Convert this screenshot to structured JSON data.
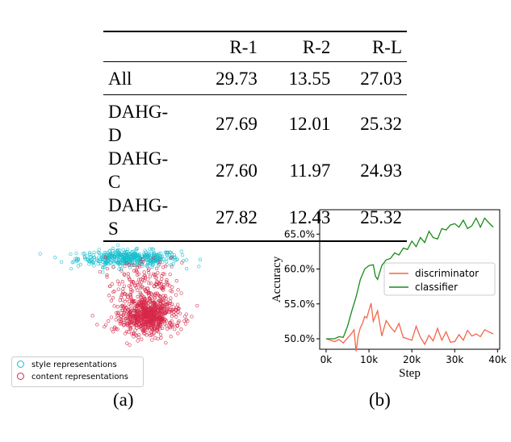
{
  "table": {
    "columns": [
      "R-1",
      "R-2",
      "R-L"
    ],
    "rows": [
      {
        "label": "All",
        "values": [
          "29.73",
          "13.55",
          "27.03"
        ]
      },
      {
        "label": "DAHG-D",
        "values": [
          "27.69",
          "12.01",
          "25.32"
        ]
      },
      {
        "label": "DAHG-C",
        "values": [
          "27.60",
          "11.97",
          "24.93"
        ]
      },
      {
        "label": "DAHG-S",
        "values": [
          "27.82",
          "12.43",
          "25.32"
        ]
      }
    ]
  },
  "panel_a": {
    "caption": "(a)",
    "legend": [
      "style representations",
      "content representations"
    ],
    "colors": {
      "style": "#17becf",
      "content": "#d62748"
    }
  },
  "panel_b": {
    "caption": "(b)",
    "legend": [
      "discriminator",
      "classifier"
    ],
    "colors": {
      "discriminator": "#f4664a",
      "classifier": "#1a8a1a"
    }
  },
  "chart_data": [
    {
      "type": "scatter",
      "title": "",
      "xlabel": "",
      "ylabel": "",
      "series": [
        {
          "name": "style representations",
          "center": [
            0.0,
            1.6
          ],
          "spread": [
            1.6,
            0.35
          ],
          "count": 450
        },
        {
          "name": "content representations",
          "center": [
            0.6,
            -1.2
          ],
          "spread": [
            0.9,
            0.8
          ],
          "count": 900
        }
      ],
      "legend_position": "bottom-left"
    },
    {
      "type": "line",
      "title": "",
      "xlabel": "Step",
      "ylabel": "Accuracy",
      "xlim": [
        -1500,
        40500
      ],
      "ylim": [
        48.5,
        68.5
      ],
      "x_ticks": [
        0,
        10000,
        20000,
        30000,
        40000
      ],
      "x_tick_labels": [
        "0k",
        "10k",
        "20k",
        "30k",
        "40k"
      ],
      "y_ticks": [
        50,
        55,
        60,
        65
      ],
      "y_tick_labels": [
        "50.0%",
        "55.0%",
        "60.0%",
        "65.0%"
      ],
      "legend_position": "center-right",
      "series": [
        {
          "name": "discriminator",
          "x": [
            0,
            2000,
            3000,
            4000,
            5000,
            6000,
            6500,
            7000,
            7500,
            8000,
            8500,
            9000,
            9500,
            10000,
            10500,
            11000,
            12000,
            13000,
            14000,
            15000,
            16000,
            17000,
            18000,
            19000,
            20000,
            21000,
            22000,
            23000,
            24000,
            25000,
            26000,
            27000,
            28000,
            29000,
            30000,
            31000,
            32000,
            33000,
            34000,
            35000,
            36000,
            37000,
            38000,
            39000
          ],
          "values": [
            50.0,
            49.6,
            49.9,
            49.4,
            50.1,
            50.8,
            51.3,
            48.2,
            50.5,
            51.6,
            52.2,
            53.2,
            53.0,
            54.1,
            55.1,
            52.5,
            54.0,
            50.4,
            52.6,
            51.7,
            51.0,
            52.2,
            50.2,
            50.0,
            49.8,
            51.8,
            50.2,
            49.2,
            50.5,
            49.7,
            51.5,
            49.8,
            51.0,
            49.5,
            49.6,
            50.6,
            49.8,
            51.2,
            50.4,
            50.7,
            50.3,
            51.3,
            51.0,
            50.7
          ]
        },
        {
          "name": "classifier",
          "x": [
            0,
            2000,
            3000,
            4000,
            5000,
            6000,
            7000,
            8000,
            9000,
            10000,
            11000,
            11500,
            12000,
            13000,
            14000,
            15000,
            16000,
            17000,
            18000,
            19000,
            20000,
            21000,
            22000,
            23000,
            24000,
            25000,
            26000,
            27000,
            28000,
            29000,
            30000,
            31000,
            32000,
            33000,
            34000,
            35000,
            36000,
            37000,
            38000,
            39000
          ],
          "values": [
            50.0,
            50.0,
            50.3,
            50.2,
            51.8,
            54.0,
            56.0,
            58.5,
            60.0,
            60.5,
            60.6,
            59.0,
            58.5,
            60.5,
            61.3,
            61.5,
            62.3,
            62.0,
            63.0,
            62.8,
            64.0,
            63.2,
            64.5,
            63.8,
            65.4,
            64.5,
            64.3,
            65.8,
            65.6,
            66.3,
            66.5,
            66.0,
            67.0,
            65.8,
            66.2,
            67.3,
            66.0,
            67.3,
            66.6,
            66.0
          ]
        }
      ]
    }
  ]
}
